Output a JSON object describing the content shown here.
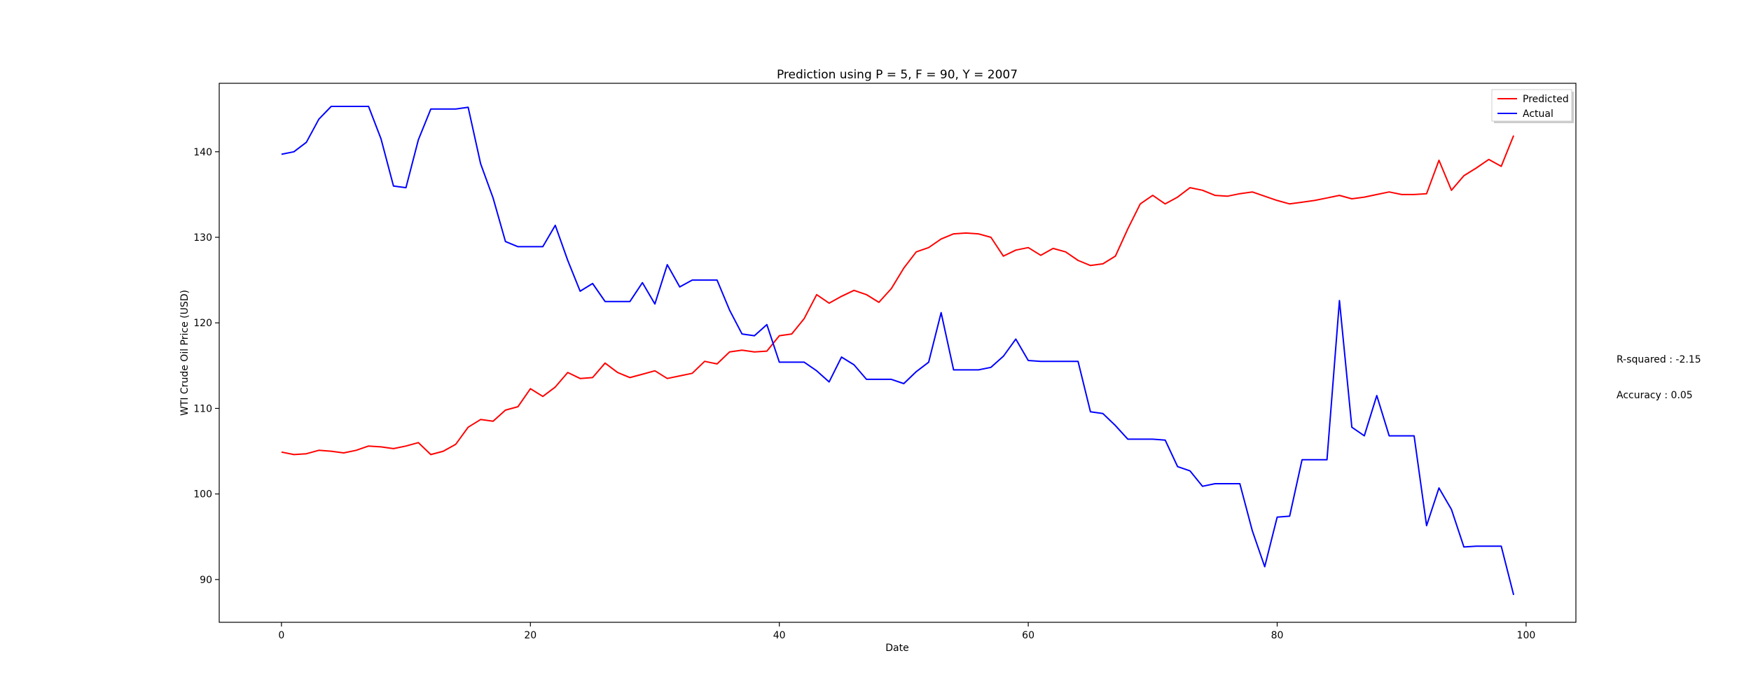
{
  "chart_data": {
    "type": "line",
    "title": "Prediction using P = 5, F = 90, Y = 2007",
    "xlabel": "Date",
    "ylabel": "WTI Crude Oil Price (USD)",
    "xlim": [
      -5,
      104
    ],
    "ylim": [
      85,
      148
    ],
    "xticks": [
      0,
      20,
      40,
      60,
      80,
      100
    ],
    "yticks": [
      90,
      100,
      110,
      120,
      130,
      140
    ],
    "grid": false,
    "legend_position": "top-right",
    "x": [
      0,
      1,
      2,
      3,
      4,
      5,
      6,
      7,
      8,
      9,
      10,
      11,
      12,
      13,
      14,
      15,
      16,
      17,
      18,
      19,
      20,
      21,
      22,
      23,
      24,
      25,
      26,
      27,
      28,
      29,
      30,
      31,
      32,
      33,
      34,
      35,
      36,
      37,
      38,
      39,
      40,
      41,
      42,
      43,
      44,
      45,
      46,
      47,
      48,
      49,
      50,
      51,
      52,
      53,
      54,
      55,
      56,
      57,
      58,
      59,
      60,
      61,
      62,
      63,
      64,
      65,
      66,
      67,
      68,
      69,
      70,
      71,
      72,
      73,
      74,
      75,
      76,
      77,
      78,
      79,
      80,
      81,
      82,
      83,
      84,
      85,
      86,
      87,
      88,
      89,
      90,
      91,
      92,
      93,
      94,
      95,
      96,
      97,
      98,
      99
    ],
    "series": [
      {
        "name": "Predicted",
        "color": "#ff0000",
        "values": [
          104.9,
          104.6,
          104.7,
          105.1,
          105.0,
          104.8,
          105.1,
          105.6,
          105.5,
          105.3,
          105.6,
          106.0,
          104.6,
          105.0,
          105.8,
          107.8,
          108.7,
          108.5,
          109.8,
          110.2,
          112.3,
          111.4,
          112.5,
          114.2,
          113.5,
          113.6,
          115.3,
          114.2,
          113.6,
          114.0,
          114.4,
          113.5,
          113.8,
          114.1,
          115.5,
          115.2,
          116.6,
          116.8,
          116.6,
          116.7,
          118.5,
          118.7,
          120.5,
          123.3,
          122.3,
          123.1,
          123.8,
          123.3,
          122.4,
          124.0,
          126.4,
          128.3,
          128.8,
          129.8,
          130.4,
          130.5,
          130.4,
          130.0,
          127.8,
          128.5,
          128.8,
          127.9,
          128.7,
          128.3,
          127.3,
          126.7,
          126.9,
          127.8,
          131.0,
          133.9,
          134.9,
          133.9,
          134.7,
          135.8,
          135.5,
          134.9,
          134.8,
          135.1,
          135.3,
          134.8,
          134.3,
          133.9,
          134.1,
          134.3,
          134.6,
          134.9,
          134.5,
          134.7,
          135.0,
          135.3,
          135.0,
          135.0,
          135.1,
          139.0,
          135.5,
          137.2,
          138.1,
          139.1,
          138.3,
          141.9
        ]
      },
      {
        "name": "Actual",
        "color": "#0000ff",
        "values": [
          139.7,
          140.0,
          141.1,
          143.8,
          145.3,
          145.3,
          145.3,
          145.3,
          141.5,
          136.0,
          135.8,
          141.4,
          145.0,
          145.0,
          145.0,
          145.2,
          138.6,
          134.6,
          129.5,
          128.9,
          128.9,
          128.9,
          131.4,
          127.3,
          123.7,
          124.6,
          122.5,
          122.5,
          122.5,
          124.7,
          122.2,
          126.8,
          124.2,
          125.0,
          125.0,
          125.0,
          121.5,
          118.7,
          118.5,
          119.8,
          115.4,
          115.4,
          115.4,
          114.4,
          113.1,
          116.0,
          115.1,
          113.4,
          113.4,
          113.4,
          112.9,
          114.3,
          115.4,
          121.2,
          114.5,
          114.5,
          114.5,
          114.8,
          116.1,
          118.1,
          115.6,
          115.5,
          115.5,
          115.5,
          115.5,
          109.6,
          109.4,
          108.0,
          106.4,
          106.4,
          106.4,
          106.3,
          103.2,
          102.7,
          100.9,
          101.2,
          101.2,
          101.2,
          95.7,
          91.5,
          97.3,
          97.4,
          104.0,
          104.0,
          104.0,
          122.6,
          107.8,
          106.8,
          111.5,
          106.8,
          106.8,
          106.8,
          96.3,
          100.7,
          98.2,
          93.8,
          93.9,
          93.9,
          93.9,
          88.2
        ]
      }
    ],
    "side_text": [
      "R-squared : -2.15",
      "Accuracy : 0.05"
    ]
  }
}
